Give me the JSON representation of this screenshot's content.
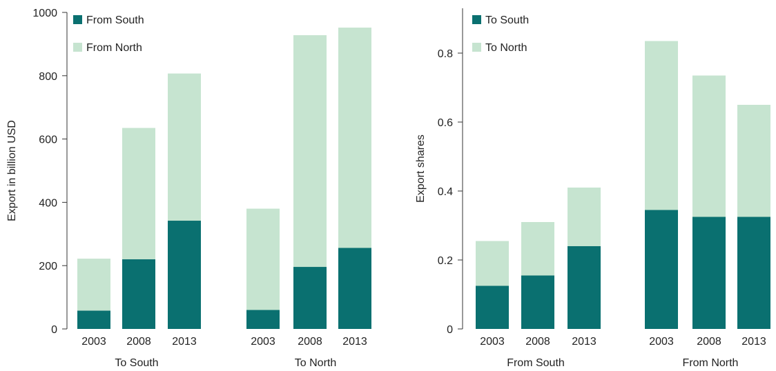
{
  "colors": {
    "dark": "#0a7070",
    "light": "#c6e4d0"
  },
  "chart_data": [
    {
      "type": "bar",
      "stacked": true,
      "ylabel": "Export in billion USD",
      "ylim": [
        0,
        1000
      ],
      "yticks": [
        0,
        200,
        400,
        600,
        800,
        1000
      ],
      "groups": [
        {
          "label": "To South",
          "categories": [
            "2003",
            "2008",
            "2013"
          ]
        },
        {
          "label": "To North",
          "categories": [
            "2003",
            "2008",
            "2013"
          ]
        }
      ],
      "series": [
        {
          "name": "From South",
          "color": "#0a7070",
          "values": [
            58,
            220,
            342,
            60,
            196,
            256
          ]
        },
        {
          "name": "From North",
          "color": "#c6e4d0",
          "values": [
            164,
            415,
            465,
            320,
            732,
            696
          ]
        }
      ],
      "legend_position": "top-left"
    },
    {
      "type": "bar",
      "stacked": true,
      "ylabel": "Export shares",
      "ylim": [
        0,
        0.93
      ],
      "yticks": [
        0,
        0.2,
        0.4,
        0.6,
        0.8
      ],
      "ytick_labels": [
        "0",
        "0.2",
        "0.4",
        "0.6",
        "0.8"
      ],
      "groups": [
        {
          "label": "From South",
          "categories": [
            "2003",
            "2008",
            "2013"
          ]
        },
        {
          "label": "From North",
          "categories": [
            "2003",
            "2008",
            "2013"
          ]
        }
      ],
      "series": [
        {
          "name": "To South",
          "color": "#0a7070",
          "values": [
            0.125,
            0.155,
            0.24,
            0.345,
            0.325,
            0.325
          ]
        },
        {
          "name": "To North",
          "color": "#c6e4d0",
          "values": [
            0.13,
            0.155,
            0.17,
            0.49,
            0.41,
            0.325
          ]
        }
      ],
      "legend_position": "top-left"
    }
  ]
}
